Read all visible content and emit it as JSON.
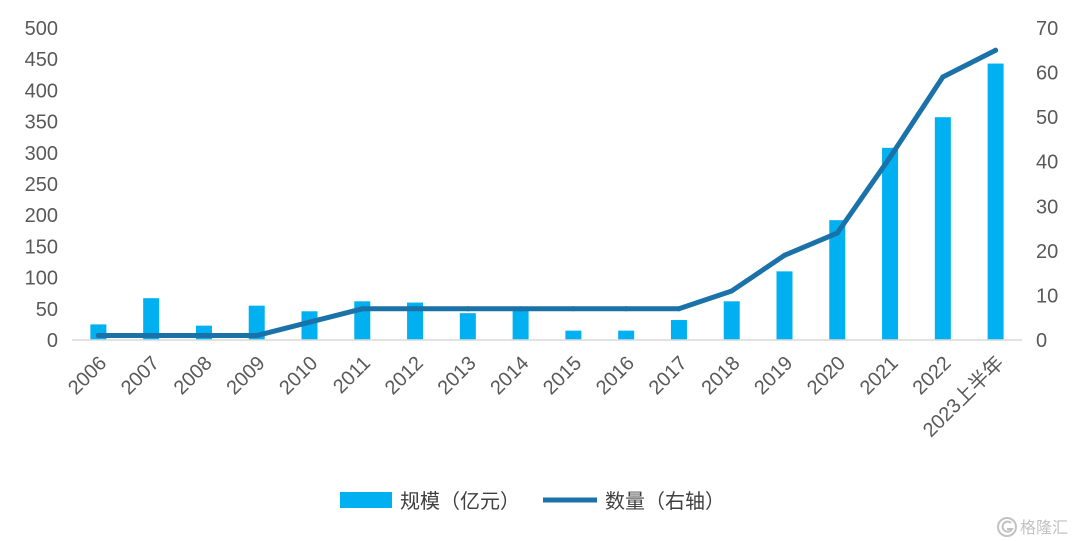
{
  "chart_data": {
    "type": "bar",
    "categories": [
      "2006",
      "2007",
      "2008",
      "2009",
      "2010",
      "2011",
      "2012",
      "2013",
      "2014",
      "2015",
      "2016",
      "2017",
      "2018",
      "2019",
      "2020",
      "2021",
      "2022",
      "2023上半年"
    ],
    "series": [
      {
        "name": "规模（亿元）",
        "type": "bar",
        "axis": "left",
        "values": [
          25,
          67,
          23,
          55,
          46,
          62,
          60,
          43,
          52,
          15,
          15,
          32,
          62,
          110,
          192,
          308,
          357,
          443
        ]
      },
      {
        "name": "数量（右轴）",
        "type": "line",
        "axis": "right",
        "values": [
          1,
          1,
          1,
          1,
          4,
          7,
          7,
          7,
          7,
          7,
          7,
          7,
          11,
          19,
          24,
          41,
          59,
          65
        ]
      }
    ],
    "title": "",
    "xlabel": "",
    "ylabel": "",
    "ylim": [
      0,
      500
    ],
    "yticks": [
      0,
      50,
      100,
      150,
      200,
      250,
      300,
      350,
      400,
      450,
      500
    ],
    "y2lim": [
      0,
      70
    ],
    "y2ticks": [
      0,
      10,
      20,
      30,
      40,
      50,
      60,
      70
    ],
    "grid": false,
    "legend": "bottom",
    "colors": {
      "bar": "#00b0f0",
      "line": "#1b72a8",
      "axis": "#d9d9d9",
      "tick_text": "#595959"
    }
  },
  "watermark": {
    "text": "格隆汇",
    "icon": "logo-icon"
  }
}
